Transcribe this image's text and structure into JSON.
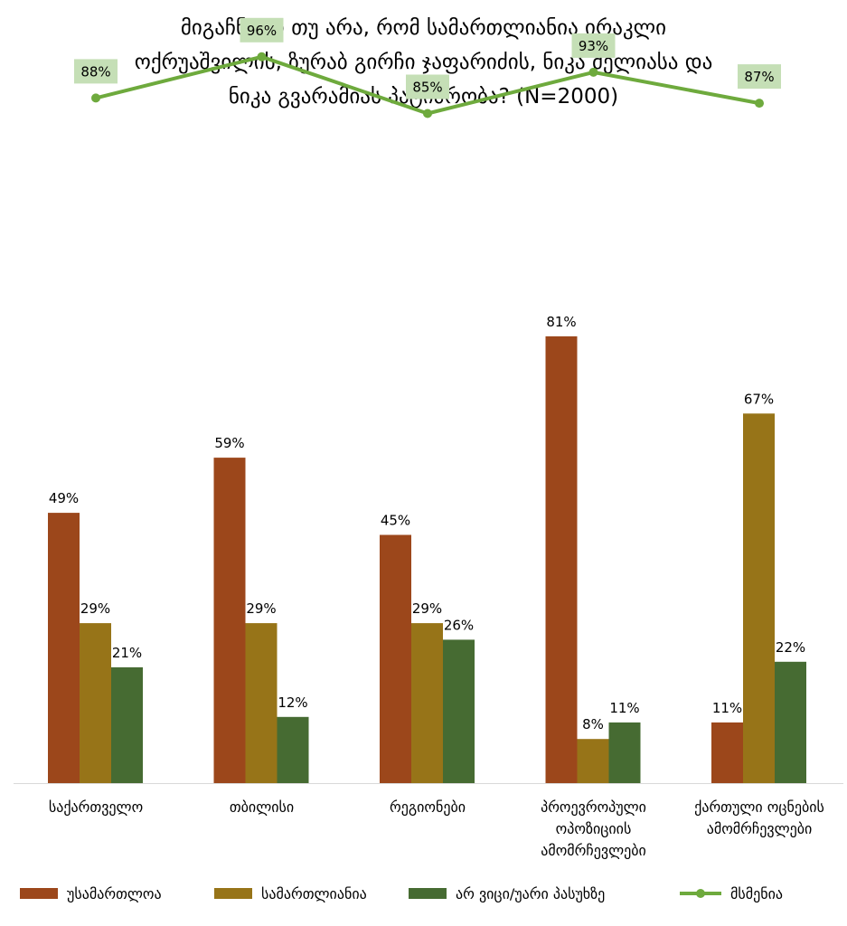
{
  "chart_data": {
    "type": "bar",
    "title": {
      "line1": "მიგაჩნიათ თუ არა, რომ სამართლიანია ირაკლი",
      "line2": "ოქრუაშვილის, ზურაბ გირჩი ჯაფარიძის, ნიკა მელიასა და",
      "line3": "ნიკა გვარამიას პატიმრობა? (N=2000)"
    },
    "categories": [
      [
        "საქართველო"
      ],
      [
        "თბილისი"
      ],
      [
        "რეგიონები"
      ],
      [
        "პროევროპული",
        "ოპოზიციის",
        "ამომრჩევლები"
      ],
      [
        "ქართული ოცნების",
        "ამომრჩევლები"
      ]
    ],
    "series": [
      {
        "name": "უსამართლოა",
        "color": "#9C471B",
        "values": [
          49,
          59,
          45,
          81,
          11
        ]
      },
      {
        "name": "სამართლიანია",
        "color": "#977418",
        "values": [
          29,
          29,
          29,
          8,
          67
        ]
      },
      {
        "name": "არ ვიცი/უარი პასუხზე",
        "color": "#466B32",
        "values": [
          21,
          12,
          26,
          11,
          22
        ]
      }
    ],
    "line_series": {
      "name": "მსმენია",
      "color": "#6EAA3D",
      "label_bg": "#C5DFB6",
      "values": [
        88,
        96,
        85,
        93,
        87
      ]
    },
    "value_suffix": "%",
    "ylim": [
      0,
      100
    ],
    "grid": false,
    "legend_position": "bottom"
  }
}
